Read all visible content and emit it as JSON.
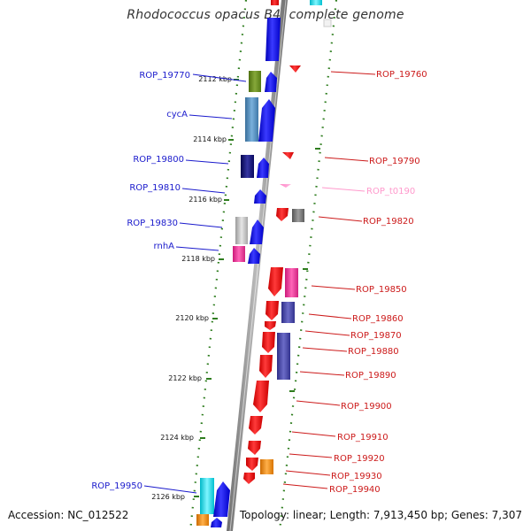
{
  "title": "Rhodococcus opacus B4, complete genome",
  "accession": "Accession: NC_012522",
  "summary": "Topology: linear; Length: 7,913,450 bp; Genes: 7,307",
  "colors": {
    "backbone": "#8c8c8c",
    "tick": "#2e7d1e",
    "left_label": "#1a1acc",
    "right_label": "#cc1a1a",
    "rna_label": "#ff99cc"
  },
  "kbp_labels": [
    "2112 kbp",
    "2114 kbp",
    "2116 kbp",
    "2118 kbp",
    "2120 kbp",
    "2122 kbp",
    "2124 kbp",
    "2126 kbp"
  ],
  "left_genes": [
    "ROP_19770",
    "cycA",
    "ROP_19800",
    "ROP_19810",
    "ROP_19830",
    "rnhA",
    "ROP_19950"
  ],
  "right_genes": [
    "ROP_19760",
    "ROP_19790",
    "ROP_t0190",
    "ROP_19820",
    "ROP_19850",
    "ROP_19860",
    "ROP_19870",
    "ROP_19880",
    "ROP_19890",
    "ROP_19900",
    "ROP_19910",
    "ROP_19920",
    "ROP_19930",
    "ROP_19940"
  ]
}
